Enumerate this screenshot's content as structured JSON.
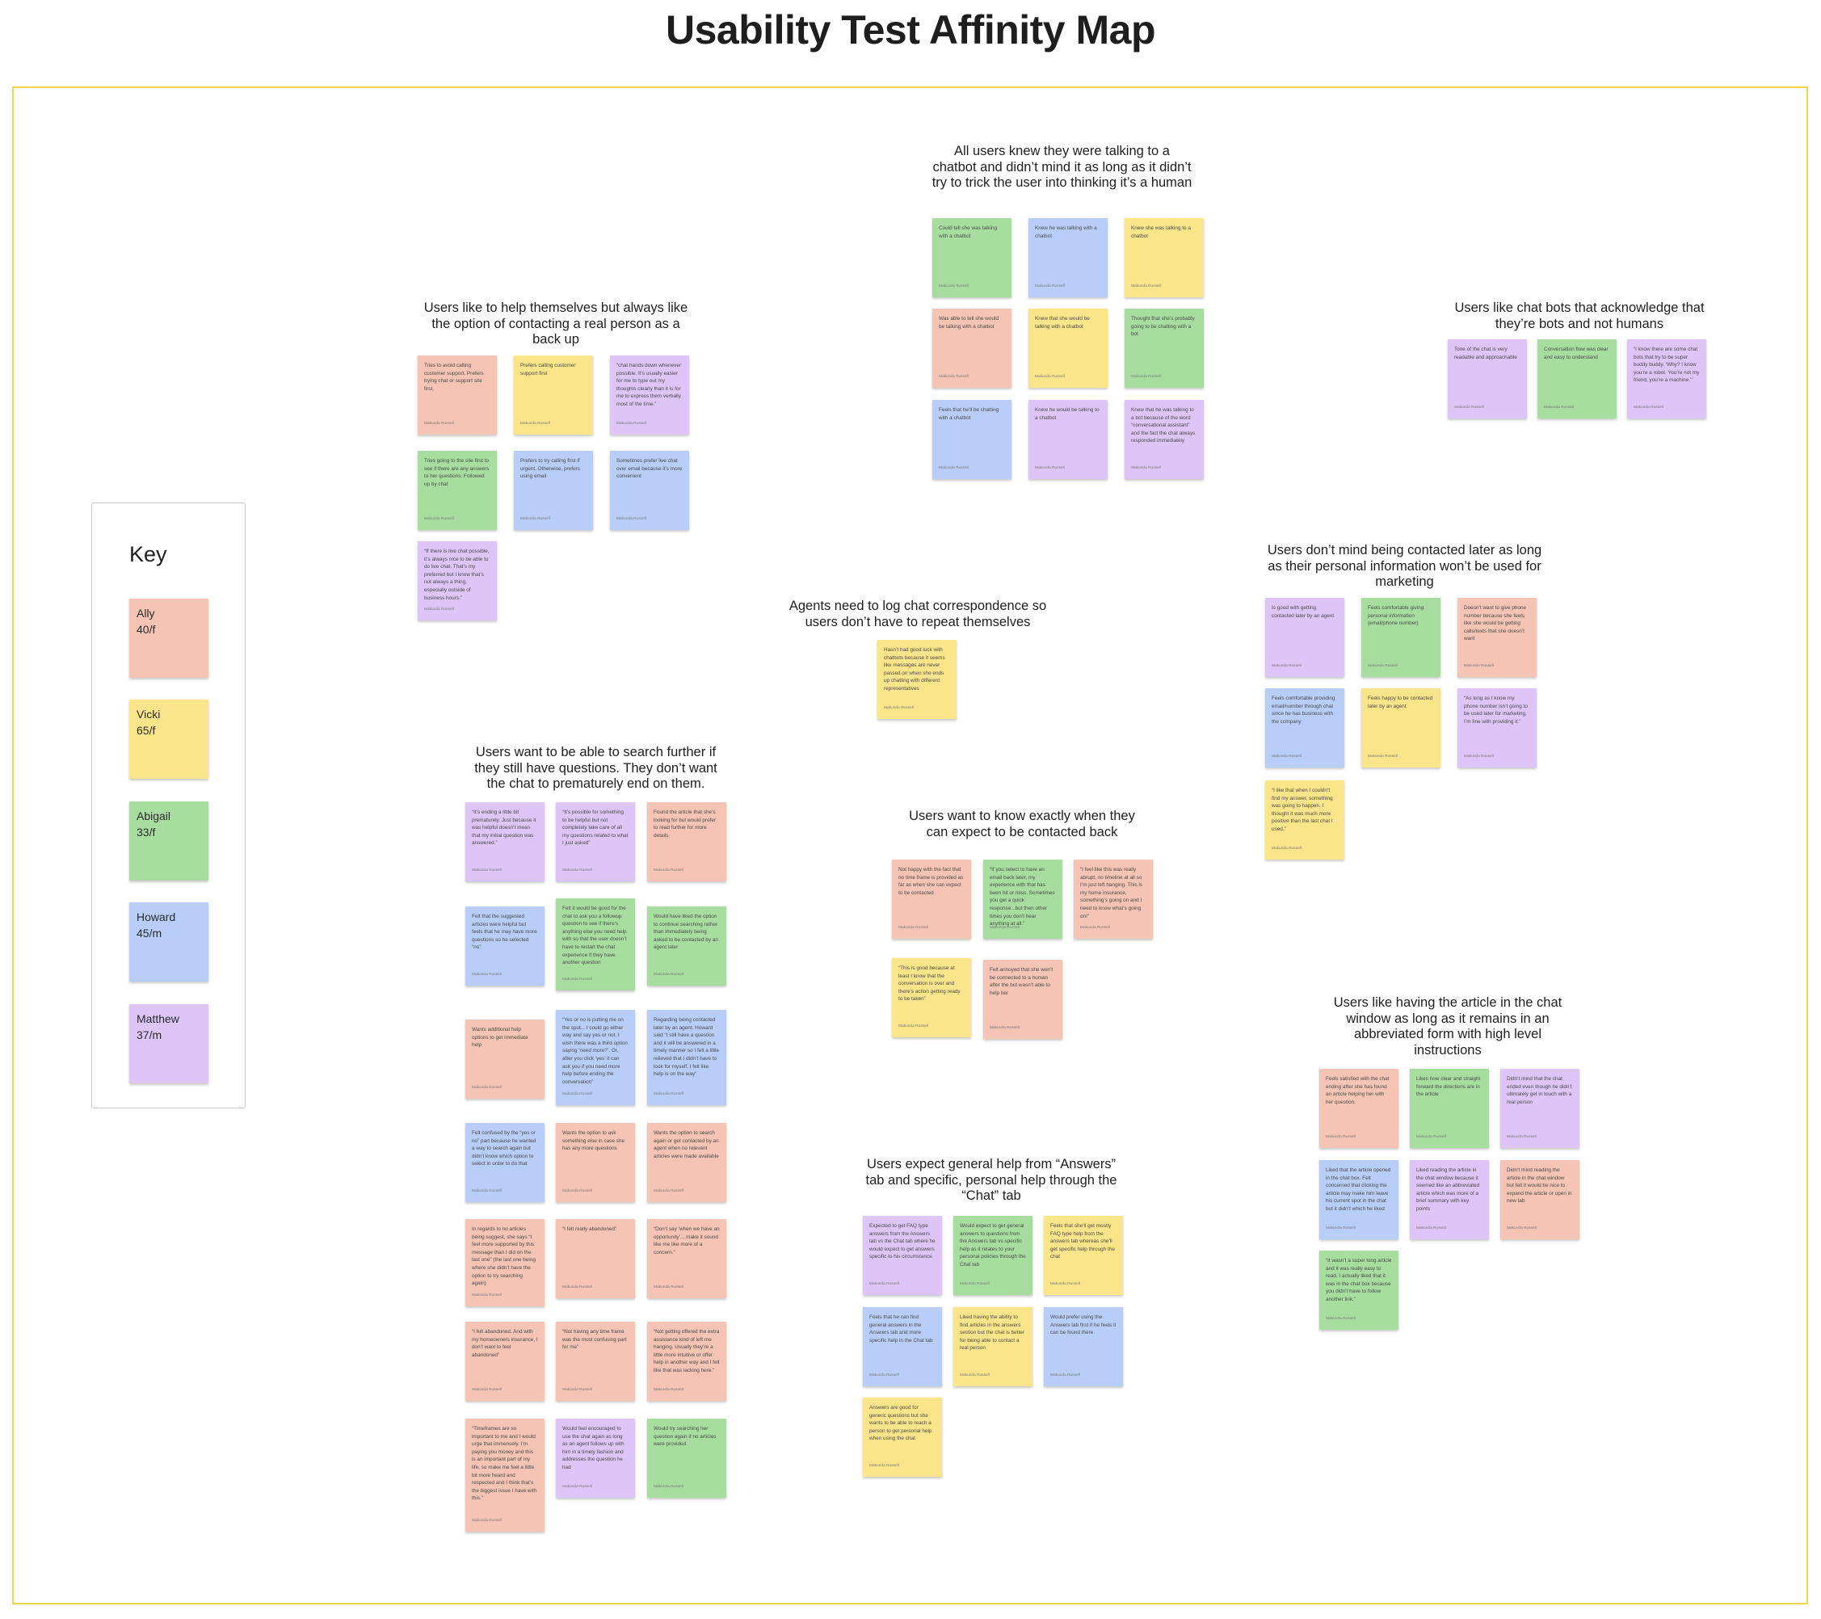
{
  "title": "Usability Test Affinity Map",
  "colors": {
    "Ally": "#f5c4b4",
    "Vicki": "#fbe58b",
    "Abigail": "#a7dea0",
    "Howard": "#b8cef8",
    "Matthew": "#dec5f7",
    "board_border": "#f2d64b"
  },
  "key": {
    "title": "Key",
    "participants": [
      {
        "name": "Ally",
        "detail": "40/f",
        "color": "Ally"
      },
      {
        "name": "Vicki",
        "detail": "65/f",
        "color": "Vicki"
      },
      {
        "name": "Abigail",
        "detail": "33/f",
        "color": "Abigail"
      },
      {
        "name": "Howard",
        "detail": "45/m",
        "color": "Howard"
      },
      {
        "name": "Matthew",
        "detail": "37/m",
        "color": "Matthew"
      }
    ]
  },
  "clusters": [
    {
      "title": "Users like to help themselves but always like the option of contacting a real person as a back up",
      "notes": [
        {
          "text": "Tries to avoid calling customer support. Prefers trying chat or support site first.",
          "author": "Makunda Russell",
          "color": "Ally"
        },
        {
          "text": "Prefers calling customer support first",
          "author": "Makunda Russell",
          "color": "Vicki"
        },
        {
          "text": "“chat hands down whenever possible. It’s usually easier for me to type out my thoughts clearly than it is for me to express them verbally most of the time.”",
          "author": "Makunda Russell",
          "color": "Matthew"
        },
        {
          "text": "Tries going to the site first to see if there are any answers to her questions. Followed up by chat",
          "author": "Makunda Russell",
          "color": "Abigail"
        },
        {
          "text": "Prefers to try calling first if urgent. Otherwise, prefers using email",
          "author": "Makunda Russell",
          "color": "Howard"
        },
        {
          "text": "Sometimes prefer live chat over email because it’s more convenient",
          "author": "Makunda Russell",
          "color": "Howard"
        },
        {
          "text": "“If there is live chat possible, it’s always nice to be able to do live chat. That’s my preferred but I know that’s not always a thing, especially outside of business hours.”",
          "author": "Makunda Russell",
          "color": "Matthew"
        }
      ]
    },
    {
      "title": "All users knew they were talking to a chatbot and didn’t mind it as long as it didn’t try to trick the user into thinking it’s a human",
      "notes": [
        {
          "text": "Could tell she was talking with a chatbot",
          "author": "Makunda Russell",
          "color": "Abigail"
        },
        {
          "text": "Knew he was talking with a chatbot",
          "author": "Makunda Russell",
          "color": "Howard"
        },
        {
          "text": "Knew she was talking to a chatbot",
          "author": "Makunda Russell",
          "color": "Vicki"
        },
        {
          "text": "Was able to tell she would be talking with a chatbot",
          "author": "Makunda Russell",
          "color": "Ally"
        },
        {
          "text": "Knew that she would be talking with a chatbot",
          "author": "Makunda Russell",
          "color": "Vicki"
        },
        {
          "text": "Thought that she’s probably going to be chatting with a bot",
          "author": "Makunda Russell",
          "color": "Abigail"
        },
        {
          "text": "Feels that he’ll be chatting with a chatbot",
          "author": "Makunda Russell",
          "color": "Howard"
        },
        {
          "text": "Knew he would be talking to a chatbot",
          "author": "Makunda Russell",
          "color": "Matthew"
        },
        {
          "text": "Knew that he was talking to a bot because of the word “conversational assistant” and the fact the chat always responded immediately",
          "author": "Makunda Russell",
          "color": "Matthew"
        }
      ]
    },
    {
      "title": "Users like chat bots that acknowledge that they’re bots and not humans",
      "notes": [
        {
          "text": "Tone of the chat is very readable and approachable",
          "author": "Makunda Russell",
          "color": "Matthew"
        },
        {
          "text": "Conversation flow was clear and easy to understand",
          "author": "Makunda Russell",
          "color": "Abigail"
        },
        {
          "text": "“I know there are some chat bots that try to be super buddy buddy. ‘Why? I know you’re a robot. You’re not my friend, you’re a machine.’”",
          "author": "Makunda Russell",
          "color": "Matthew"
        }
      ]
    },
    {
      "title": "Agents need to log chat correspondence so users don’t have to repeat themselves",
      "notes": [
        {
          "text": "Hasn’t had good luck with chatbots because it seems like messages are never passed on when she ends up chatting with different representatives",
          "author": "Makunda Russell",
          "color": "Vicki"
        }
      ]
    },
    {
      "title": "Users don’t mind being contacted later as long as their personal information won’t be used for marketing",
      "notes": [
        {
          "text": "Is good with getting contacted later by an agent",
          "author": "Makunda Russell",
          "color": "Matthew"
        },
        {
          "text": "Feels comfortable giving personal information (email/phone number)",
          "author": "Makunda Russell",
          "color": "Abigail"
        },
        {
          "text": "Doesn’t want to give phone number because she feels like she would be getting calls/texts that she doesn’t want",
          "author": "Makunda Russell",
          "color": "Ally"
        },
        {
          "text": "Feels comfortable providing email/number through chat since he has business with the company",
          "author": "Makunda Russell",
          "color": "Howard"
        },
        {
          "text": "Feels happy to be contacted later by an agent",
          "author": "Makunda Russell",
          "color": "Vicki"
        },
        {
          "text": "“As long as I know my phone number isn’t going to be used later for marketing, I’m fine with providing it.”",
          "author": "Makunda Russell",
          "color": "Matthew"
        },
        {
          "text": "“I like that when I couldn’t find my answer, something was going to happen. I thought it was much more positive than the last chat I used.”",
          "author": "Makunda Russell",
          "color": "Vicki"
        }
      ]
    },
    {
      "title": "Users want to be able to search further if they still have questions. They don’t want the chat to prematurely end on them.",
      "notes": [
        {
          "text": "“It’s ending a little bit prematurely. Just because it was helpful doesn’t mean that my initial question was answered.”",
          "author": "Makunda Russell",
          "color": "Matthew"
        },
        {
          "text": "“It’s possible for something to be helpful but not completely take care of all my questions related to what I just asked”",
          "author": "Makunda Russell",
          "color": "Matthew"
        },
        {
          "text": "Found the article that she’s looking for but would prefer to read further for more details",
          "author": "Makunda Russell",
          "color": "Ally"
        },
        {
          "text": "Felt that the suggested articles were helpful but feels that he may have more questions so he selected “no”",
          "author": "Makunda Russell",
          "color": "Howard"
        },
        {
          "text": "Felt it would be good for the chat to ask you a followup question to see if there’s anything else you need help with so that the user doesn’t have to restart the chat experience if they have another question",
          "author": "Makunda Russell",
          "color": "Abigail"
        },
        {
          "text": "Would have liked the option to continue searching rather than immediately being asked to be contacted by an agent later",
          "author": "Makunda Russell",
          "color": "Abigail"
        },
        {
          "text": "Wants additional help options to get immediate help",
          "author": "Makunda Russell",
          "color": "Ally"
        },
        {
          "text": "“Yes or no is putting me on the spot... I could go either way and say yes or not. I wish there was a third option saying ‘need more?’. Or, after you click ‘yes’ it can ask you if you need more help before ending the conversation”",
          "author": "Makunda Russell",
          "color": "Howard"
        },
        {
          "text": "Regarding being contacted later by an agent, Howard said “I still have a question and it will be answered in a timely manner so I felt a little relieved that I didn’t have to look for myself. I felt like help is on the way”",
          "author": "Makunda Russell",
          "color": "Howard"
        },
        {
          "text": "Felt confused by the “yes or no” part because he wanted a way to search again but didn’t know which option to select in order to do that",
          "author": "Makunda Russell",
          "color": "Howard"
        },
        {
          "text": "Wants the option to ask something else in case she has any more questions",
          "author": "Makunda Russell",
          "color": "Ally"
        },
        {
          "text": "Wants the option to search again or get contacted by an agent when no relevant articles were made available",
          "author": "Makunda Russell",
          "color": "Ally"
        },
        {
          "text": "In regards to no articles being suggest, she says “I feel more supported by this message than I did on the last one” (the last one being where she didn’t have the option to try searching again)",
          "author": "Makunda Russell",
          "color": "Ally"
        },
        {
          "text": "“I felt really abandoned”",
          "author": "Makunda Russell",
          "color": "Ally"
        },
        {
          "text": "“Don’t say ‘when we have an opportunity’... make it sound like me like more of a concern.”",
          "author": "Makunda Russell",
          "color": "Ally"
        },
        {
          "text": "“I felt abandoned. And with my homeowners insurance, I don’t want to feel abandoned”",
          "author": "Makunda Russell",
          "color": "Ally"
        },
        {
          "text": "“Not having any time frame was the most confusing part for me”",
          "author": "Makunda Russell",
          "color": "Ally"
        },
        {
          "text": "“Not getting offered the extra assistance kind of left me hanging. Usually they’re a little more intuitive or offer help in another way and I felt like that was lacking here.”",
          "author": "Makunda Russell",
          "color": "Ally"
        },
        {
          "text": "“Timeframes are so important to me and I would urge that immensely. I’m paying you money and this is an important part of my life, so make me feel a little bit more heard and respected and I think that’s the biggest issue I have with this.”",
          "author": "Makunda Russell",
          "color": "Ally"
        },
        {
          "text": "Would feel encouraged to use the chat again as long as an agent follows up with him in a timely fashion and addresses the question he had",
          "author": "Makunda Russell",
          "color": "Matthew"
        },
        {
          "text": "Would try searching her question again if no articles were provided",
          "author": "Makunda Russell",
          "color": "Abigail"
        }
      ]
    },
    {
      "title": "Users want to know exactly when they can expect to be contacted back",
      "notes": [
        {
          "text": "Not happy with the fact that no time frame is provided as far as when she can expect to be contacted",
          "author": "Makunda Russell",
          "color": "Ally"
        },
        {
          "text": "“If you select to have an email back later, my experience with that has been hit or miss. Sometimes you get a quick response...but then other times you don’t hear anything at all.”",
          "author": "Makunda Russell",
          "color": "Abigail"
        },
        {
          "text": "“I feel like this was really abrupt, no timeline at all so I’m just left hanging. This is my home insurance, something’s going on and I need to know what’s going on!”",
          "author": "Makunda Russell",
          "color": "Ally"
        },
        {
          "text": "“This is good because at least I know that the conversation is over and there’s action getting ready to be taken”",
          "author": "Makunda Russell",
          "color": "Vicki"
        },
        {
          "text": "Felt annoyed that she won’t be connected to a human after the bot wasn’t able to help her",
          "author": "Makunda Russell",
          "color": "Ally"
        }
      ]
    },
    {
      "title": "Users like having the article in the chat window as long as it remains in an abbreviated form with high level instructions",
      "notes": [
        {
          "text": "Feels satisfied with the chat ending after she has found an article helping her with her question.",
          "author": "Makunda Russell",
          "color": "Ally"
        },
        {
          "text": "Likes how clear and straight forward the directions are in the article",
          "author": "Makunda Russell",
          "color": "Abigail"
        },
        {
          "text": "Didn’t mind that the chat ended even though he didn’t ultimately get in touch with a real person",
          "author": "Makunda Russell",
          "color": "Matthew"
        },
        {
          "text": "Liked that the article opened in the chat box. Felt concerned that clicking the article may make him leave his current spot in the chat but it didn’t which he liked",
          "author": "Makunda Russell",
          "color": "Howard"
        },
        {
          "text": "Liked reading the article in the chat window because it seemed like an abbreviated article which was more of a brief summary with key points",
          "author": "Makunda Russell",
          "color": "Matthew"
        },
        {
          "text": "Didn’t mind reading the article in the chat window but felt it would be nice to expand the article or open in new tab",
          "author": "Makunda Russell",
          "color": "Ally"
        },
        {
          "text": "“It wasn’t a super long article and it was really easy to read. I actually liked that it was in the chat box because you didn’t have to follow another link.”",
          "author": "Makunda Russell",
          "color": "Abigail"
        }
      ]
    },
    {
      "title": "Users expect general help from “Answers” tab and specific, personal help through the “Chat” tab",
      "notes": [
        {
          "text": "Expected to get FAQ type answers from the Answers tab vs the Chat tab where he would expect to get answers specific to his circumstance",
          "author": "Makunda Russell",
          "color": "Matthew"
        },
        {
          "text": "Would expect to get general answers to questions from the Answers tab vs specific help as it relates to your personal policies through the Chat tab",
          "author": "Makunda Russell",
          "color": "Abigail"
        },
        {
          "text": "Feels that she’ll get mostly FAQ type help from the answers tab whereas she’ll get specific help through the chat",
          "author": "Makunda Russell",
          "color": "Vicki"
        },
        {
          "text": "Feels that he can find general answers in the Answers tab and more specific help in the Chat tab",
          "author": "Makunda Russell",
          "color": "Howard"
        },
        {
          "text": "Liked having the ability to find articles in the answers section but the chat is better for being able to contact a real person",
          "author": "Makunda Russell",
          "color": "Vicki"
        },
        {
          "text": "Would prefer using the Answers tab first if he feels it can be found there",
          "author": "Makunda Russell",
          "color": "Howard"
        },
        {
          "text": "Answers are good for generic questions but she wants to be able to reach a person to get personal help when using the chat",
          "author": "Makunda Russell",
          "color": "Vicki"
        }
      ]
    }
  ]
}
